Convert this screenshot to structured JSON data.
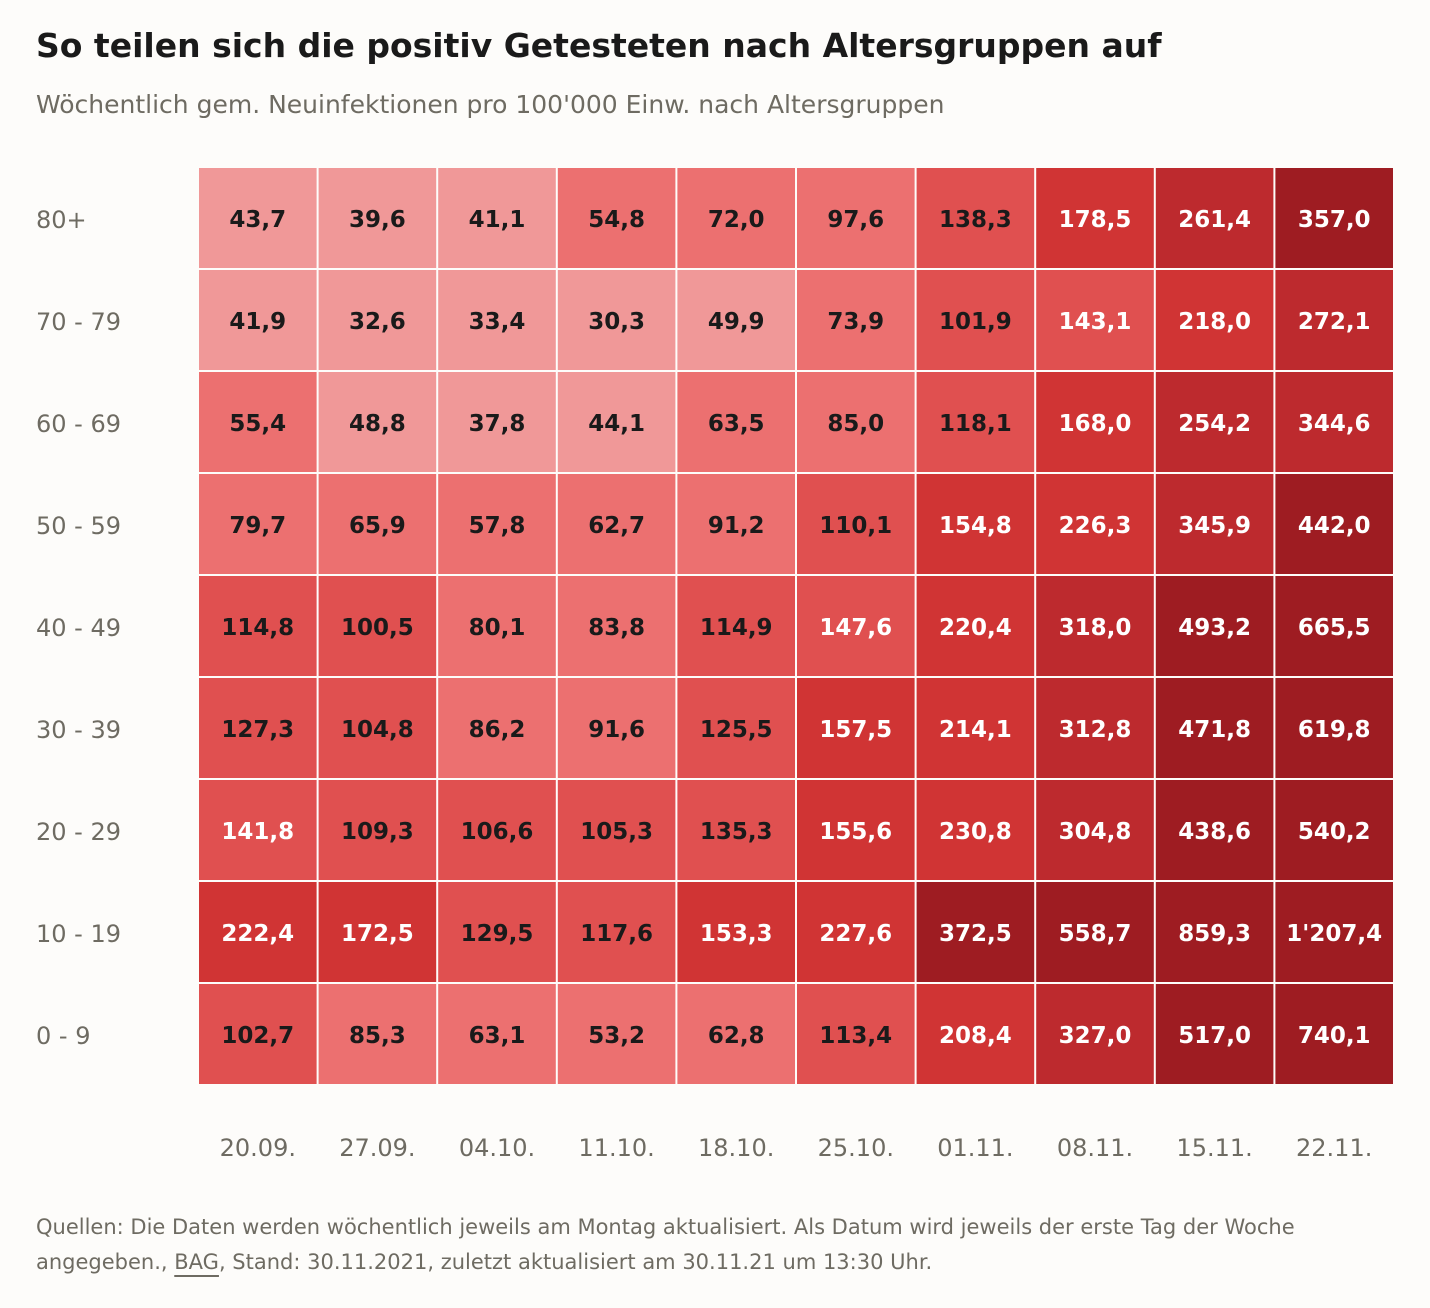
{
  "title": "So teilen sich die positiv Getesteten nach Altersgruppen auf",
  "subtitle": "Wöchentlich gem. Neuinfektionen pro 100'000 Einw. nach Altersgruppen",
  "footer": {
    "text_before": "Quellen: Die Daten werden wöchentlich jeweils am Montag aktualisiert. Als Datum wird jeweils der erste Tag der Woche angegeben., ",
    "source_link": "BAG",
    "text_after": ", Stand: 30.11.2021, zuletzt aktualisiert am 30.11.21 um 13:30 Uhr."
  },
  "chart_data": {
    "type": "heatmap",
    "title": "So teilen sich die positiv Getesteten nach Altersgruppen auf",
    "subtitle": "Wöchentlich gem. Neuinfektionen pro 100'000 Einw. nach Altersgruppen",
    "x": [
      "20.09.",
      "27.09.",
      "04.10.",
      "11.10.",
      "18.10.",
      "25.10.",
      "01.11.",
      "08.11.",
      "15.11.",
      "22.11."
    ],
    "y": [
      "80+",
      "70 - 79",
      "60 - 69",
      "50 - 59",
      "40 - 49",
      "30 - 39",
      "20 - 29",
      "10 - 19",
      "0 - 9"
    ],
    "values": [
      [
        "43,7",
        "39,6",
        "41,1",
        "54,8",
        "72,0",
        "97,6",
        "138,3",
        "178,5",
        "261,4",
        "357,0"
      ],
      [
        "41,9",
        "32,6",
        "33,4",
        "30,3",
        "49,9",
        "73,9",
        "101,9",
        "143,1",
        "218,0",
        "272,1"
      ],
      [
        "55,4",
        "48,8",
        "37,8",
        "44,1",
        "63,5",
        "85,0",
        "118,1",
        "168,0",
        "254,2",
        "344,6"
      ],
      [
        "79,7",
        "65,9",
        "57,8",
        "62,7",
        "91,2",
        "110,1",
        "154,8",
        "226,3",
        "345,9",
        "442,0"
      ],
      [
        "114,8",
        "100,5",
        "80,1",
        "83,8",
        "114,9",
        "147,6",
        "220,4",
        "318,0",
        "493,2",
        "665,5"
      ],
      [
        "127,3",
        "104,8",
        "86,2",
        "91,6",
        "125,5",
        "157,5",
        "214,1",
        "312,8",
        "471,8",
        "619,8"
      ],
      [
        "141,8",
        "109,3",
        "106,6",
        "105,3",
        "135,3",
        "155,6",
        "230,8",
        "304,8",
        "438,6",
        "540,2"
      ],
      [
        "222,4",
        "172,5",
        "129,5",
        "117,6",
        "153,3",
        "227,6",
        "372,5",
        "558,7",
        "859,3",
        "1'207,4"
      ],
      [
        "102,7",
        "85,3",
        "63,1",
        "53,2",
        "62,8",
        "113,4",
        "208,4",
        "327,0",
        "517,0",
        "740,1"
      ]
    ],
    "color_scale": [
      "#f09898",
      "#ec7070",
      "#e05050",
      "#d03434",
      "#bd2a2e",
      "#9e1c22"
    ],
    "grid": true,
    "legend": "none"
  }
}
